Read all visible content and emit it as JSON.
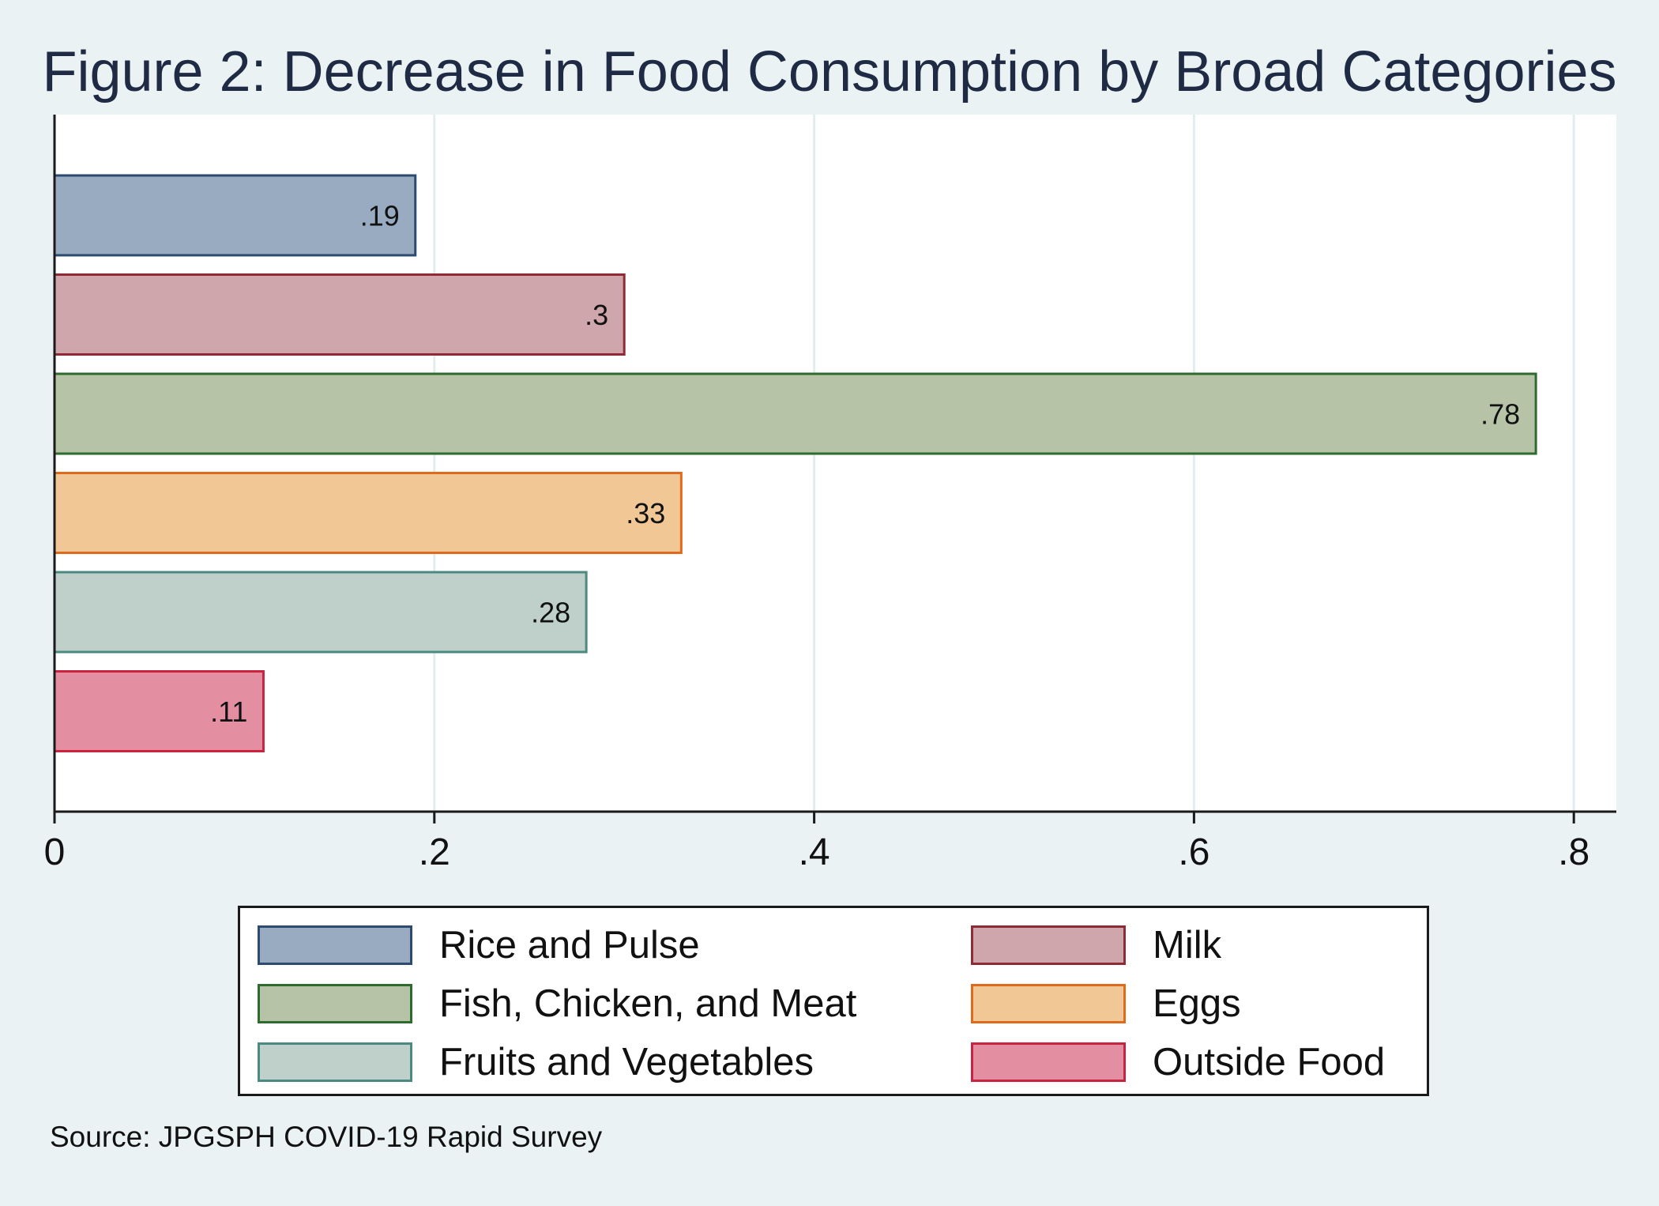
{
  "chart_data": {
    "type": "bar",
    "orientation": "horizontal",
    "title": "Figure 2: Decrease in Food Consumption by Broad Categories",
    "xlabel": "",
    "ylabel": "",
    "xlim": [
      0,
      0.82
    ],
    "xticks": [
      0,
      0.2,
      0.4,
      0.6,
      0.8
    ],
    "xtick_labels": [
      "0",
      ".2",
      ".4",
      ".6",
      ".8"
    ],
    "grid": true,
    "categories": [
      "Rice and Pulse",
      "Milk",
      "Fish, Chicken, and Meat",
      "Eggs",
      "Fruits and Vegetables",
      "Outside Food"
    ],
    "values": [
      0.19,
      0.3,
      0.78,
      0.33,
      0.28,
      0.11
    ],
    "bar_value_labels": [
      ".19",
      ".3",
      ".78",
      ".33",
      ".28",
      ".11"
    ],
    "series_colors": [
      {
        "fill": "#98abc0",
        "stroke": "#2d4a70"
      },
      {
        "fill": "#cfa6ab",
        "stroke": "#8f2a36"
      },
      {
        "fill": "#b6c3a7",
        "stroke": "#2e6b2e"
      },
      {
        "fill": "#f2c796",
        "stroke": "#e06a1c"
      },
      {
        "fill": "#bfd0cb",
        "stroke": "#4a8a80"
      },
      {
        "fill": "#e38ea1",
        "stroke": "#c8243f"
      }
    ],
    "legend": {
      "placement": "bottom",
      "entries": [
        "Rice and Pulse",
        "Milk",
        "Fish, Chicken, and Meat",
        "Eggs",
        "Fruits and Vegetables",
        "Outside Food"
      ]
    }
  },
  "source": "Source: JPGSPH COVID-19 Rapid Survey",
  "colors": {
    "background": "#eaf2f3",
    "plot_area": "#ffffff",
    "grid": "#e3edf0",
    "title": "#1f2a44"
  }
}
